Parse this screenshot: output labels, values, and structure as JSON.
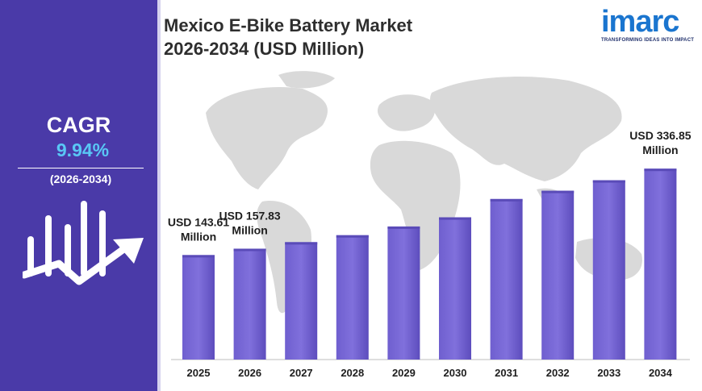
{
  "title_line1": "Mexico E-Bike Battery Market",
  "title_line2": "2026-2034 (USD Million)",
  "logo": {
    "name": "imarc",
    "tagline": "TRANSFORMING IDEAS INTO IMPACT"
  },
  "cagr": {
    "label": "CAGR",
    "value": "9.94%",
    "period": "(2026-2034)"
  },
  "colors": {
    "panel": "#4a3aa8",
    "bar": "#7b6ad6",
    "bar_dark": "#5a4bb8",
    "cagr_value": "#59c7f5",
    "logo": "#1a75cf"
  },
  "chart_data": {
    "type": "bar",
    "title": "Mexico E-Bike Battery Market 2026-2034 (USD Million)",
    "categories": [
      "2025",
      "2026",
      "2027",
      "2028",
      "2029",
      "2030",
      "2031",
      "2032",
      "2033",
      "2034"
    ],
    "values": [
      143.61,
      157.83,
      172.5,
      188.0,
      207.5,
      228.0,
      269.0,
      287.5,
      311.0,
      336.85
    ],
    "data_labels": [
      {
        "index": 0,
        "line1": "USD 143.61",
        "line2": "Million"
      },
      {
        "index": 1,
        "line1": "USD 157.83",
        "line2": "Million"
      },
      {
        "index": 9,
        "line1": "USD 336.85",
        "line2": "Million"
      }
    ],
    "ylim": [
      0,
      350
    ],
    "grid": false,
    "xlabel": "",
    "ylabel": ""
  }
}
